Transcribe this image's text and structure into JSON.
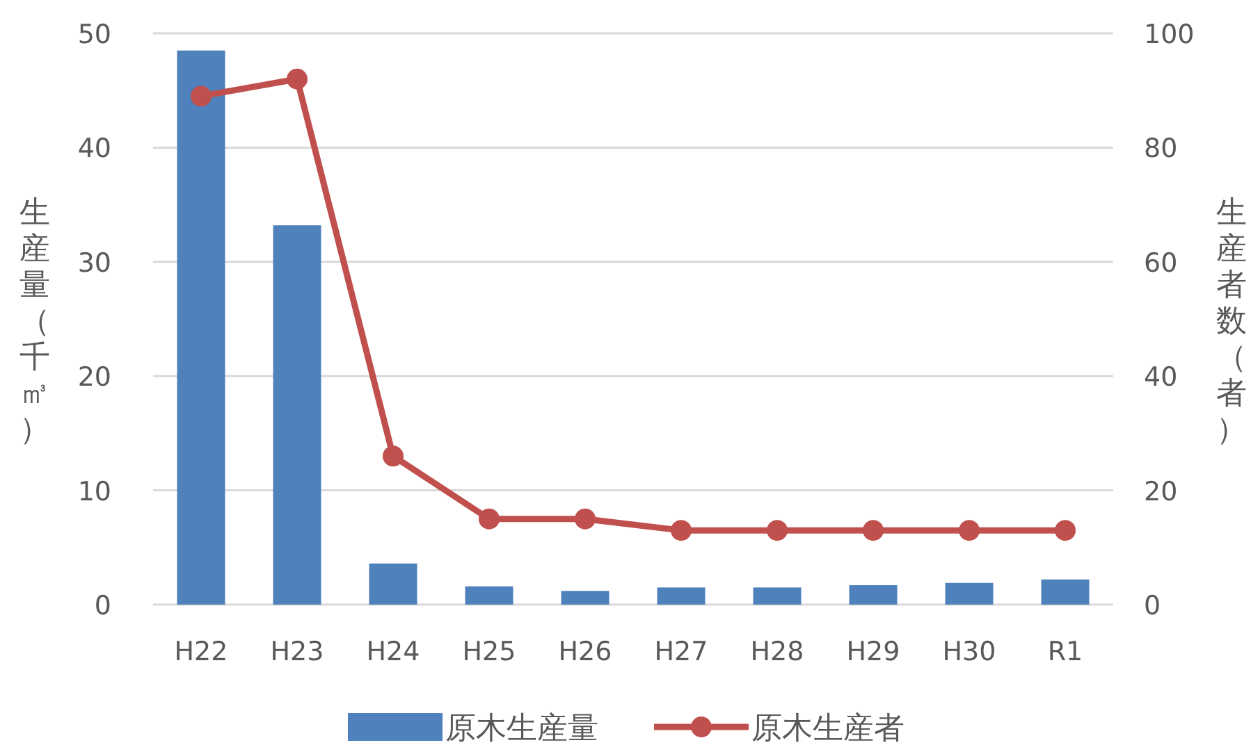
{
  "chart_data": {
    "type": "bar",
    "categories": [
      "H22",
      "H23",
      "H24",
      "H25",
      "H26",
      "H27",
      "H28",
      "H29",
      "H30",
      "R1"
    ],
    "series": [
      {
        "name": "原木生産量",
        "color": "#4f81bd",
        "values": [
          48.5,
          33.2,
          3.6,
          1.6,
          1.2,
          1.5,
          1.5,
          1.7,
          1.9,
          2.2
        ]
      },
      {
        "name": "原木生産者",
        "color": "#c0504d",
        "type": "line",
        "axis": "y2",
        "marker": "circle",
        "values": [
          89,
          92,
          26,
          15,
          15,
          13,
          13,
          13,
          13,
          13
        ]
      }
    ],
    "ylabel": "生産量（千㎥）",
    "y2label": "生産者数（者）",
    "ylim": [
      0,
      50
    ],
    "yticks": [
      0,
      10,
      20,
      30,
      40,
      50
    ],
    "y2lim": [
      0,
      100
    ],
    "y2ticks": [
      0,
      20,
      40,
      60,
      80,
      100
    ],
    "grid": "y",
    "legend": "bottom"
  }
}
